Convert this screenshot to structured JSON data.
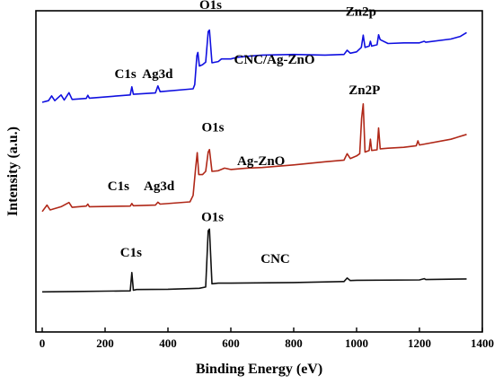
{
  "chart_data": {
    "type": "line",
    "xlabel": "Binding Energy (eV)",
    "ylabel": "Intensity (a.u.)",
    "xlim": [
      -20,
      1400
    ],
    "xticks": [
      "0",
      "200",
      "400",
      "600",
      "800",
      "1000",
      "1200",
      "1400"
    ],
    "yticks": [],
    "grid": false,
    "series": [
      {
        "name": "CNC/Ag-ZnO",
        "color": "#1010e0",
        "points": [
          [
            0,
            0.715
          ],
          [
            20,
            0.72
          ],
          [
            30,
            0.735
          ],
          [
            40,
            0.72
          ],
          [
            60,
            0.738
          ],
          [
            70,
            0.722
          ],
          [
            85,
            0.745
          ],
          [
            95,
            0.724
          ],
          [
            140,
            0.727
          ],
          [
            145,
            0.737
          ],
          [
            150,
            0.728
          ],
          [
            280,
            0.738
          ],
          [
            285,
            0.763
          ],
          [
            290,
            0.74
          ],
          [
            360,
            0.744
          ],
          [
            368,
            0.766
          ],
          [
            375,
            0.748
          ],
          [
            480,
            0.757
          ],
          [
            485,
            0.77
          ],
          [
            492,
            0.86
          ],
          [
            495,
            0.87
          ],
          [
            500,
            0.828
          ],
          [
            510,
            0.832
          ],
          [
            520,
            0.84
          ],
          [
            528,
            0.935
          ],
          [
            532,
            0.94
          ],
          [
            540,
            0.838
          ],
          [
            560,
            0.842
          ],
          [
            570,
            0.85
          ],
          [
            600,
            0.85
          ],
          [
            620,
            0.855
          ],
          [
            650,
            0.858
          ],
          [
            700,
            0.862
          ],
          [
            800,
            0.864
          ],
          [
            900,
            0.862
          ],
          [
            960,
            0.864
          ],
          [
            970,
            0.877
          ],
          [
            980,
            0.868
          ],
          [
            1000,
            0.872
          ],
          [
            1015,
            0.886
          ],
          [
            1021,
            0.924
          ],
          [
            1027,
            0.886
          ],
          [
            1040,
            0.89
          ],
          [
            1044,
            0.905
          ],
          [
            1048,
            0.89
          ],
          [
            1065,
            0.894
          ],
          [
            1070,
            0.925
          ],
          [
            1075,
            0.91
          ],
          [
            1100,
            0.898
          ],
          [
            1150,
            0.9
          ],
          [
            1200,
            0.9
          ],
          [
            1215,
            0.905
          ],
          [
            1220,
            0.902
          ],
          [
            1300,
            0.912
          ],
          [
            1330,
            0.92
          ],
          [
            1350,
            0.932
          ]
        ]
      },
      {
        "name": "Ag-ZnO",
        "color": "#b02818",
        "points": [
          [
            0,
            0.375
          ],
          [
            15,
            0.395
          ],
          [
            25,
            0.38
          ],
          [
            60,
            0.39
          ],
          [
            85,
            0.403
          ],
          [
            95,
            0.388
          ],
          [
            140,
            0.392
          ],
          [
            145,
            0.398
          ],
          [
            150,
            0.39
          ],
          [
            280,
            0.392
          ],
          [
            285,
            0.4
          ],
          [
            290,
            0.393
          ],
          [
            360,
            0.395
          ],
          [
            368,
            0.404
          ],
          [
            375,
            0.398
          ],
          [
            470,
            0.405
          ],
          [
            480,
            0.425
          ],
          [
            488,
            0.51
          ],
          [
            493,
            0.558
          ],
          [
            498,
            0.49
          ],
          [
            510,
            0.49
          ],
          [
            520,
            0.5
          ],
          [
            528,
            0.56
          ],
          [
            532,
            0.568
          ],
          [
            540,
            0.5
          ],
          [
            560,
            0.502
          ],
          [
            580,
            0.51
          ],
          [
            600,
            0.506
          ],
          [
            650,
            0.51
          ],
          [
            700,
            0.512
          ],
          [
            800,
            0.52
          ],
          [
            900,
            0.53
          ],
          [
            960,
            0.535
          ],
          [
            970,
            0.555
          ],
          [
            980,
            0.54
          ],
          [
            1000,
            0.548
          ],
          [
            1010,
            0.555
          ],
          [
            1016,
            0.665
          ],
          [
            1021,
            0.71
          ],
          [
            1027,
            0.56
          ],
          [
            1040,
            0.565
          ],
          [
            1044,
            0.6
          ],
          [
            1048,
            0.565
          ],
          [
            1065,
            0.567
          ],
          [
            1070,
            0.635
          ],
          [
            1075,
            0.57
          ],
          [
            1100,
            0.572
          ],
          [
            1150,
            0.575
          ],
          [
            1190,
            0.58
          ],
          [
            1195,
            0.595
          ],
          [
            1200,
            0.582
          ],
          [
            1300,
            0.6
          ],
          [
            1350,
            0.615
          ]
        ]
      },
      {
        "name": "CNC",
        "color": "#111111",
        "points": [
          [
            0,
            0.125
          ],
          [
            100,
            0.126
          ],
          [
            200,
            0.127
          ],
          [
            280,
            0.128
          ],
          [
            285,
            0.185
          ],
          [
            290,
            0.13
          ],
          [
            300,
            0.132
          ],
          [
            400,
            0.133
          ],
          [
            500,
            0.136
          ],
          [
            520,
            0.14
          ],
          [
            528,
            0.315
          ],
          [
            532,
            0.32
          ],
          [
            540,
            0.15
          ],
          [
            560,
            0.152
          ],
          [
            600,
            0.152
          ],
          [
            800,
            0.154
          ],
          [
            960,
            0.157
          ],
          [
            970,
            0.168
          ],
          [
            980,
            0.16
          ],
          [
            1000,
            0.161
          ],
          [
            1200,
            0.162
          ],
          [
            1215,
            0.166
          ],
          [
            1220,
            0.163
          ],
          [
            1350,
            0.165
          ]
        ]
      }
    ],
    "annotations": [
      {
        "text": "O1s",
        "x": 500,
        "y": 1.005
      },
      {
        "text": "Zn2p",
        "x": 965,
        "y": 0.985
      },
      {
        "text": "C1s",
        "x": 230,
        "y": 0.79
      },
      {
        "text": "Ag3d",
        "x": 318,
        "y": 0.79
      },
      {
        "text": "CNC/Ag-ZnO",
        "x": 610,
        "y": 0.835
      },
      {
        "text": "Zn2P",
        "x": 975,
        "y": 0.74
      },
      {
        "text": "O1s",
        "x": 507,
        "y": 0.625
      },
      {
        "text": "C1s",
        "x": 208,
        "y": 0.442
      },
      {
        "text": "Ag3d",
        "x": 323,
        "y": 0.442
      },
      {
        "text": "Ag-ZnO",
        "x": 620,
        "y": 0.52
      },
      {
        "text": "O1s",
        "x": 506,
        "y": 0.345
      },
      {
        "text": "C1s",
        "x": 248,
        "y": 0.235
      },
      {
        "text": "CNC",
        "x": 695,
        "y": 0.215
      }
    ]
  }
}
